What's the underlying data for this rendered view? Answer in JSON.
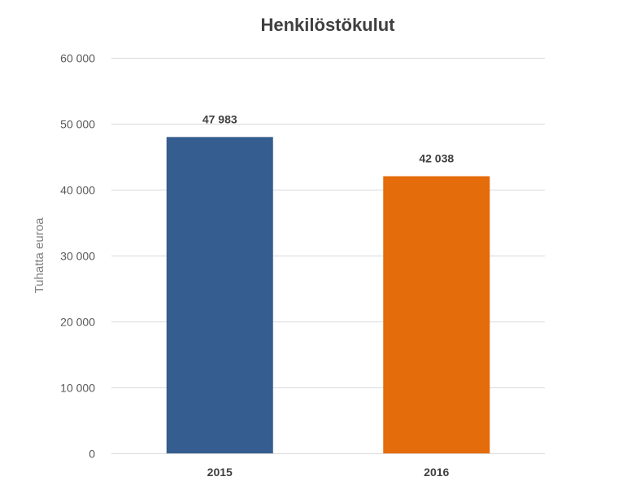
{
  "chart_data": {
    "type": "bar",
    "title": "Henkilöstökulut",
    "xlabel": "",
    "ylabel": "Tuhatta euroa",
    "categories": [
      "2015",
      "2016"
    ],
    "values": [
      47983,
      42038
    ],
    "data_labels": [
      "47 983",
      "42 038"
    ],
    "bar_colors": [
      "#355d8f",
      "#e46c0a"
    ],
    "ylim": [
      0,
      60000
    ],
    "yticks": [
      0,
      10000,
      20000,
      30000,
      40000,
      50000,
      60000
    ],
    "ytick_labels": [
      "0",
      "10 000",
      "20 000",
      "30 000",
      "40 000",
      "50 000",
      "60 000"
    ],
    "grid": true,
    "legend": "none"
  }
}
